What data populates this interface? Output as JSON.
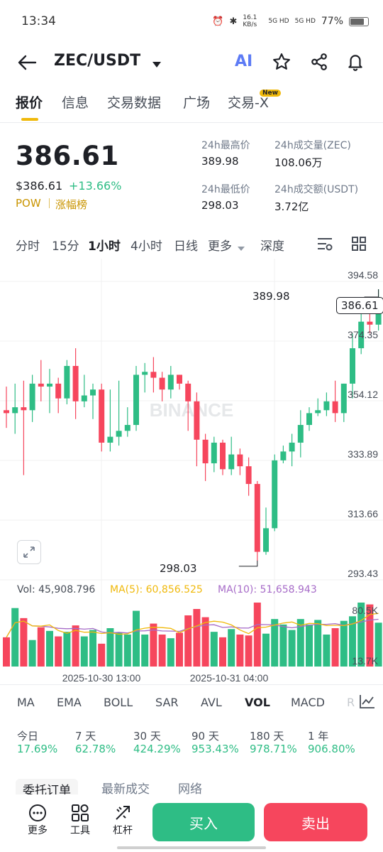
{
  "status": {
    "time": "13:34",
    "speed": "16.1 KB/s",
    "net1": "5G HD",
    "net2": "5G HD",
    "battery": "77%"
  },
  "header": {
    "pair": "ZEC/USDT",
    "ai_label": "AI"
  },
  "tabs": [
    "报价",
    "信息",
    "交易数据",
    "广场",
    "交易-X"
  ],
  "new_badge": "New",
  "ticker": {
    "price": "386.61",
    "usd_price": "$386.61",
    "change": "+13.66%",
    "tag1": "POW",
    "tag2": "涨幅榜",
    "high_label": "24h最高价",
    "high": "389.98",
    "vol_label": "24h成交量(ZEC)",
    "vol": "108.06万",
    "low_label": "24h最低价",
    "low": "298.03",
    "amt_label": "24h成交额(USDT)",
    "amt": "3.72亿"
  },
  "timeframes": [
    "分时",
    "15分",
    "1小时",
    "4小时",
    "日线",
    "更多",
    "深度"
  ],
  "active_timeframe": "1小时",
  "watermark": "BINANCE",
  "volume_info": {
    "vol": "Vol: 45,908.796",
    "ma5": "MA(5): 60,856.525",
    "ma10": "MA(10): 51,658.943"
  },
  "indicators": [
    "MA",
    "EMA",
    "BOLL",
    "SAR",
    "AVL",
    "VOL",
    "MACD",
    "R"
  ],
  "active_indicator": "VOL",
  "performance": [
    {
      "label": "今日",
      "value": "17.69%"
    },
    {
      "label": "7 天",
      "value": "62.78%"
    },
    {
      "label": "30 天",
      "value": "424.29%"
    },
    {
      "label": "90 天",
      "value": "953.43%"
    },
    {
      "label": "180 天",
      "value": "978.71%"
    },
    {
      "label": "1 年",
      "value": "906.80%"
    }
  ],
  "book_tabs": [
    "委托订单",
    "最新成交",
    "网络"
  ],
  "toolbar": {
    "more": "更多",
    "tools": "工具",
    "leverage": "杠杆",
    "buy": "买入",
    "sell": "卖出"
  },
  "colors": {
    "up": "#2ebd85",
    "down": "#f6465d",
    "accent": "#f0b90b",
    "ma5": "#f0b90b",
    "ma10": "#a76cc8"
  },
  "chart_data": {
    "type": "candlestick",
    "price_axis": [
      "394.58",
      "374.35",
      "354.12",
      "333.89",
      "313.66",
      "293.43"
    ],
    "vol_axis": [
      "80.5K",
      "13.7K"
    ],
    "time_labels": [
      "2025-10-30 13:00",
      "2025-10-31 04:00"
    ],
    "high_marker": "389.98",
    "low_marker": "298.03",
    "last_price": "386.61",
    "candles": [
      [
        349,
        348,
        343,
        357
      ],
      [
        348,
        350,
        341,
        358
      ],
      [
        350,
        349,
        327,
        359
      ],
      [
        349,
        358,
        345,
        361
      ],
      [
        358,
        357,
        352,
        366
      ],
      [
        357,
        358,
        348,
        363
      ],
      [
        358,
        353,
        348,
        360
      ],
      [
        353,
        364,
        351,
        366
      ],
      [
        364,
        352,
        346,
        370
      ],
      [
        352,
        354,
        350,
        361
      ],
      [
        354,
        356,
        346,
        358
      ],
      [
        356,
        338,
        335,
        358
      ],
      [
        338,
        340,
        335,
        356
      ],
      [
        340,
        342,
        337,
        359
      ],
      [
        342,
        344,
        340,
        350
      ],
      [
        344,
        361,
        342,
        364
      ],
      [
        361,
        362,
        355,
        365
      ],
      [
        362,
        360,
        355,
        367
      ],
      [
        360,
        356,
        352,
        362
      ],
      [
        356,
        361,
        353,
        364
      ],
      [
        361,
        358,
        356,
        361
      ],
      [
        358,
        352,
        342,
        359
      ],
      [
        352,
        339,
        330,
        355
      ],
      [
        339,
        331,
        325,
        341
      ],
      [
        331,
        338,
        328,
        340
      ],
      [
        338,
        329,
        327,
        339
      ],
      [
        329,
        334,
        327,
        340
      ],
      [
        334,
        330,
        327,
        336
      ],
      [
        330,
        324,
        320,
        333
      ],
      [
        324,
        301,
        298,
        325
      ],
      [
        301,
        309,
        300,
        316
      ],
      [
        309,
        332,
        308,
        334
      ],
      [
        332,
        335,
        331,
        337
      ],
      [
        335,
        338,
        330,
        341
      ],
      [
        338,
        344,
        333,
        349
      ],
      [
        344,
        348,
        342,
        350
      ],
      [
        348,
        349,
        347,
        353
      ],
      [
        349,
        352,
        347,
        355
      ],
      [
        352,
        348,
        345,
        359
      ],
      [
        348,
        358,
        345,
        358
      ],
      [
        358,
        370,
        353,
        375
      ],
      [
        370,
        379,
        368,
        382
      ],
      [
        379,
        378,
        375,
        384
      ],
      [
        378,
        387,
        376,
        390
      ]
    ],
    "volumes": [
      32,
      64,
      53,
      29,
      43,
      39,
      33,
      38,
      45,
      33,
      40,
      25,
      42,
      37,
      35,
      61,
      35,
      47,
      35,
      31,
      37,
      56,
      63,
      54,
      38,
      32,
      41,
      35,
      34,
      70,
      36,
      52,
      46,
      40,
      52,
      46,
      51,
      35,
      42,
      50,
      55,
      70,
      68,
      48
    ]
  }
}
